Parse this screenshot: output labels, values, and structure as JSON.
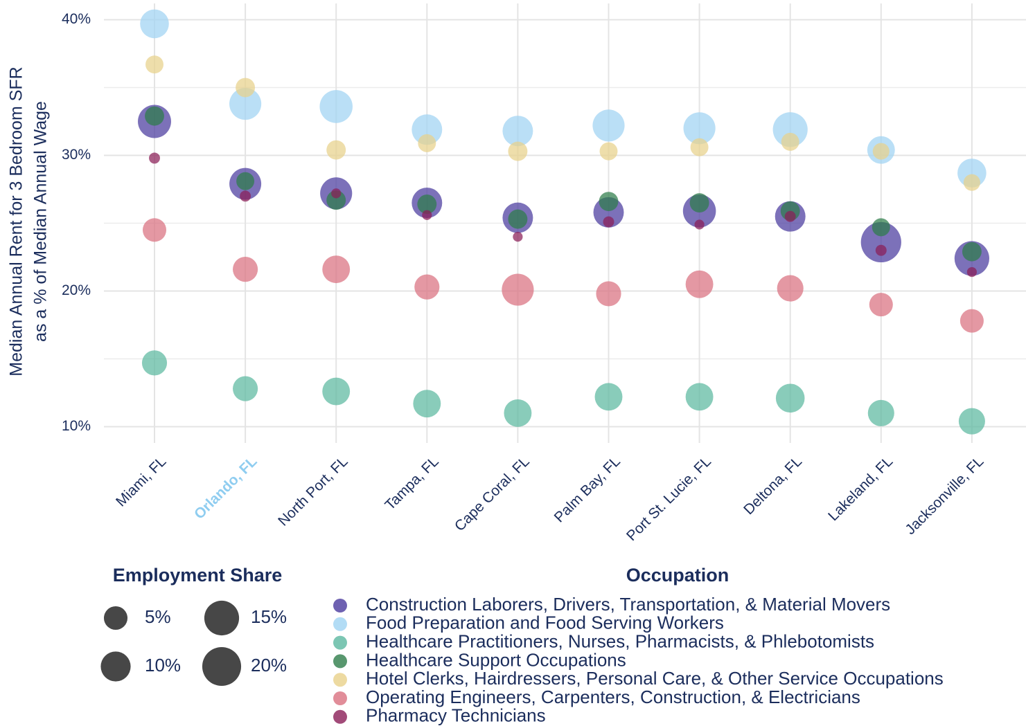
{
  "chart_data": {
    "type": "bubble",
    "ylabel": [
      "Median Annual Rent for 3 Bedroom SFR",
      "as a % of Median Annual Wage"
    ],
    "categories": [
      "Miami, FL",
      "Orlando, FL",
      "North Port, FL",
      "Tampa, FL",
      "Cape Coral, FL",
      "Palm Bay, FL",
      "Port St. Lucie, FL",
      "Deltona, FL",
      "Lakeland, FL",
      "Jacksonville, FL"
    ],
    "highlight_category": 1,
    "highlight_color": "#8fcdf0",
    "ylim": [
      8.8,
      41.2
    ],
    "yticks": [
      {
        "value": 10,
        "label": "10%"
      },
      {
        "value": 20,
        "label": "20%"
      },
      {
        "value": 30,
        "label": "30%"
      },
      {
        "value": 40,
        "label": "40%"
      }
    ],
    "yminor": [
      15,
      25,
      35
    ],
    "grid": true,
    "legend_title": "Occupation",
    "series": [
      {
        "name": "Construction Laborers, Drivers, Transportation, & Material Movers",
        "color": "#4a3a9e",
        "values": [
          32.5,
          27.9,
          27.2,
          26.5,
          25.4,
          25.8,
          25.9,
          25.5,
          23.6,
          22.4
        ],
        "sizes": [
          13.3,
          11.9,
          12,
          10.5,
          10.5,
          10.5,
          13,
          10.5,
          22,
          15
        ]
      },
      {
        "name": "Food Preparation and Food Serving Workers",
        "color": "#9fd3f2",
        "values": [
          39.7,
          33.8,
          33.6,
          31.9,
          31.8,
          32.2,
          32,
          31.9,
          30.4,
          28.7
        ],
        "sizes": [
          9,
          12,
          13,
          10.5,
          10.5,
          12,
          12,
          15,
          8,
          9
        ]
      },
      {
        "name": "Healthcare Practitioners, Nurses, Pharmacists, & Phlebotomists",
        "color": "#5bb8a0",
        "values": [
          14.7,
          12.8,
          12.6,
          11.7,
          11,
          12.2,
          12.2,
          12.1,
          11,
          10.4
        ],
        "sizes": [
          6,
          6,
          8,
          8,
          8,
          8,
          8,
          9,
          7,
          7
        ]
      },
      {
        "name": "Healthcare Support Occupations",
        "color": "#2e7d4a",
        "values": [
          32.9,
          28.1,
          26.7,
          26.4,
          25.3,
          26.6,
          26.5,
          25.9,
          24.7,
          22.9
        ],
        "sizes": [
          2.6,
          2,
          2.6,
          2.6,
          2.6,
          2.6,
          2.6,
          2.6,
          2,
          2.6
        ]
      },
      {
        "name": "Hotel Clerks, Hairdressers, Personal Care, & Other Service Occupations",
        "color": "#e8d18a",
        "values": [
          36.7,
          35,
          30.4,
          30.9,
          30.3,
          30.3,
          30.6,
          31,
          30.3,
          28
        ],
        "sizes": [
          2,
          2.6,
          2.6,
          2,
          2.6,
          2,
          2,
          2,
          1.5,
          1.5
        ]
      },
      {
        "name": "Operating Engineers, Carpenters, Construction, & Electricians",
        "color": "#d9707f",
        "values": [
          24.5,
          21.6,
          21.6,
          20.3,
          20.1,
          19.8,
          20.5,
          20.2,
          19,
          17.8
        ],
        "sizes": [
          5,
          6,
          8,
          6,
          12,
          6,
          8,
          7,
          5,
          5
        ]
      },
      {
        "name": "Pharmacy Technicians",
        "color": "#8b1e57",
        "values": [
          29.8,
          27,
          27.2,
          25.6,
          24,
          25.1,
          24.9,
          25.5,
          23,
          21.4
        ],
        "sizes": [
          0.16,
          0.16,
          0.05,
          0.05,
          0.05,
          0.16,
          0.05,
          0.16,
          0.16,
          0.05
        ]
      }
    ],
    "size_legend": {
      "title": "Employment Share",
      "values": [
        {
          "value": 5,
          "label": "5%"
        },
        {
          "value": 10,
          "label": "10%"
        },
        {
          "value": 15,
          "label": "15%"
        },
        {
          "value": 20,
          "label": "20%"
        }
      ]
    }
  }
}
